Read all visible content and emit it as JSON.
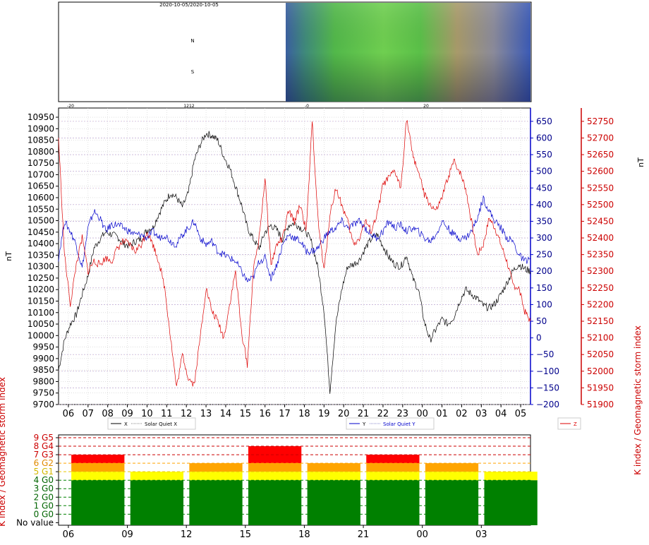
{
  "header": {
    "keogram_title": "2020-10-05/2020-10-05",
    "left_labels": [
      "-20",
      "1212",
      "N",
      "S"
    ],
    "right_labels": [
      "-0",
      "20"
    ]
  },
  "colors": {
    "x": "#000000",
    "y": "#0000cc",
    "z": "#dd0000",
    "g_green": "#008000",
    "g_yellow": "#ffff00",
    "g_orange": "#ffa500",
    "g_red": "#ff0000",
    "left_axis_text": "#000000",
    "mid_axis_text": "#00008b",
    "right_axis_text": "#cc0000"
  },
  "chart_data": [
    {
      "type": "line",
      "ylabel_left": "nT",
      "ylabel_right": "nT",
      "left_axis": {
        "ticks": [
          9700,
          9750,
          9800,
          9850,
          9900,
          9950,
          10000,
          10050,
          10100,
          10150,
          10200,
          10250,
          10300,
          10350,
          10400,
          10450,
          10500,
          10550,
          10600,
          10650,
          10700,
          10750,
          10800,
          10850,
          10900,
          10950
        ],
        "ylim": [
          9700,
          10990
        ]
      },
      "mid_axis": {
        "ticks": [
          -200,
          -150,
          -100,
          -50,
          0,
          50,
          100,
          150,
          200,
          250,
          300,
          350,
          400,
          450,
          500,
          550,
          600,
          650
        ],
        "ylim": [
          -200,
          690
        ]
      },
      "right_axis": {
        "ticks": [
          51900,
          51950,
          52000,
          52050,
          52100,
          52150,
          52200,
          52250,
          52300,
          52350,
          52400,
          52450,
          52500,
          52550,
          52600,
          52650,
          52700,
          52750
        ],
        "ylim": [
          51900,
          52790
        ]
      },
      "x_ticks": [
        "06",
        "07",
        "08",
        "09",
        "10",
        "11",
        "12",
        "13",
        "14",
        "15",
        "16",
        "17",
        "18",
        "19",
        "20",
        "21",
        "22",
        "23",
        "00",
        "01",
        "02",
        "03",
        "04",
        "05"
      ],
      "legends": [
        {
          "label": "X",
          "label2": "Solar Quiet X"
        },
        {
          "label": "Y",
          "label2": "Solar Quiet Y"
        },
        {
          "label": "Z"
        }
      ],
      "series": [
        {
          "name": "X",
          "axis": "left",
          "x": [
            0,
            0.3,
            0.6,
            0.9,
            1.2,
            1.5,
            1.8,
            2.1,
            2.4,
            2.7,
            3.0,
            3.3,
            3.6,
            3.9,
            4.2,
            4.5,
            4.8,
            5.1,
            5.4,
            5.7,
            6.0,
            6.3,
            6.6,
            6.9,
            7.2,
            7.5,
            7.8,
            8.1,
            8.4,
            8.7,
            9.0,
            9.3,
            9.6,
            9.9,
            10.2,
            10.5,
            10.8,
            11.1,
            11.4,
            11.7,
            12.0,
            12.3,
            12.6,
            12.9,
            13.2,
            13.5,
            13.8,
            14.1,
            14.4,
            14.7,
            15.0,
            15.3,
            15.6,
            15.9,
            16.2,
            16.5,
            16.8,
            17.1,
            17.4,
            17.7,
            18.0,
            18.3,
            18.6,
            18.9,
            19.2,
            19.5,
            19.8,
            20.1,
            20.4,
            20.7,
            21.0,
            21.3,
            21.6,
            21.9,
            22.2,
            22.5,
            22.8,
            23.1,
            23.4,
            23.7,
            24.0
          ],
          "values": [
            9850,
            9980,
            10050,
            10090,
            10180,
            10260,
            10380,
            10420,
            10450,
            10440,
            10430,
            10400,
            10390,
            10410,
            10420,
            10460,
            10470,
            10530,
            10580,
            10620,
            10600,
            10560,
            10620,
            10760,
            10830,
            10880,
            10870,
            10850,
            10780,
            10730,
            10650,
            10570,
            10470,
            10420,
            10380,
            10450,
            10480,
            10460,
            10420,
            10480,
            10490,
            10470,
            10450,
            10400,
            10290,
            10110,
            9760,
            10050,
            10200,
            10300,
            10310,
            10330,
            10380,
            10420,
            10440,
            10390,
            10340,
            10310,
            10300,
            10350,
            10250,
            10200,
            10060,
            9980,
            10030,
            10070,
            10050,
            10080,
            10150,
            10200,
            10180,
            10160,
            10130,
            10120,
            10140,
            10180,
            10230,
            10280,
            10310,
            10290,
            10280
          ]
        },
        {
          "name": "Y",
          "axis": "mid",
          "x": [
            0,
            0.3,
            0.6,
            0.9,
            1.2,
            1.5,
            1.8,
            2.1,
            2.4,
            2.7,
            3.0,
            3.3,
            3.6,
            3.9,
            4.2,
            4.5,
            4.8,
            5.1,
            5.4,
            5.7,
            6.0,
            6.3,
            6.6,
            6.9,
            7.2,
            7.5,
            7.8,
            8.1,
            8.4,
            8.7,
            9.0,
            9.3,
            9.6,
            9.9,
            10.2,
            10.5,
            10.8,
            11.1,
            11.4,
            11.7,
            12.0,
            12.3,
            12.6,
            12.9,
            13.2,
            13.5,
            13.8,
            14.1,
            14.4,
            14.7,
            15.0,
            15.3,
            15.6,
            15.9,
            16.2,
            16.5,
            16.8,
            17.1,
            17.4,
            17.7,
            18.0,
            18.3,
            18.6,
            18.9,
            19.2,
            19.5,
            19.8,
            20.1,
            20.4,
            20.7,
            21.0,
            21.3,
            21.6,
            21.9,
            22.2,
            22.5,
            22.8,
            23.1,
            23.4,
            23.7,
            24.0
          ],
          "values": [
            240,
            350,
            320,
            280,
            210,
            330,
            380,
            360,
            320,
            340,
            340,
            330,
            320,
            310,
            310,
            300,
            320,
            300,
            310,
            290,
            280,
            310,
            330,
            350,
            300,
            280,
            290,
            260,
            250,
            240,
            230,
            200,
            170,
            180,
            230,
            240,
            180,
            220,
            280,
            310,
            300,
            290,
            260,
            260,
            270,
            300,
            320,
            330,
            350,
            330,
            340,
            350,
            330,
            310,
            300,
            320,
            350,
            330,
            340,
            320,
            330,
            320,
            300,
            290,
            310,
            350,
            330,
            310,
            300,
            300,
            320,
            360,
            420,
            380,
            350,
            330,
            300,
            290,
            250,
            230,
            240
          ]
        },
        {
          "name": "Z",
          "axis": "right",
          "x": [
            0,
            0.3,
            0.6,
            0.9,
            1.2,
            1.5,
            1.8,
            2.1,
            2.4,
            2.7,
            3.0,
            3.3,
            3.6,
            3.9,
            4.2,
            4.5,
            4.8,
            5.1,
            5.4,
            5.7,
            6.0,
            6.3,
            6.6,
            6.9,
            7.2,
            7.5,
            7.8,
            8.1,
            8.4,
            8.7,
            9.0,
            9.3,
            9.6,
            9.9,
            10.2,
            10.5,
            10.8,
            11.1,
            11.4,
            11.7,
            12.0,
            12.3,
            12.6,
            12.9,
            13.2,
            13.5,
            13.8,
            14.1,
            14.4,
            14.7,
            15.0,
            15.3,
            15.6,
            15.9,
            16.2,
            16.5,
            16.8,
            17.1,
            17.4,
            17.7,
            18.0,
            18.3,
            18.6,
            18.9,
            19.2,
            19.5,
            19.8,
            20.1,
            20.4,
            20.7,
            21.0,
            21.3,
            21.6,
            21.9,
            22.2,
            22.5,
            22.8,
            23.1,
            23.4,
            23.7,
            24.0
          ],
          "values": [
            52700,
            52350,
            52200,
            52320,
            52400,
            52300,
            52330,
            52320,
            52340,
            52330,
            52370,
            52390,
            52380,
            52360,
            52380,
            52420,
            52380,
            52330,
            52250,
            52100,
            51950,
            52050,
            51980,
            51960,
            52100,
            52250,
            52180,
            52150,
            52100,
            52200,
            52300,
            52120,
            52020,
            52300,
            52400,
            52580,
            52320,
            52380,
            52400,
            52480,
            52450,
            52500,
            52420,
            52750,
            52450,
            52300,
            52470,
            52550,
            52500,
            52450,
            52380,
            52400,
            52450,
            52420,
            52470,
            52560,
            52580,
            52600,
            52550,
            52760,
            52650,
            52600,
            52530,
            52500,
            52480,
            52520,
            52580,
            52630,
            52600,
            52550,
            52450,
            52350,
            52380,
            52460,
            52430,
            52380,
            52330,
            52260,
            52250,
            52180,
            52150
          ]
        }
      ]
    },
    {
      "type": "bar",
      "ylabel": "K index / Geomagnetic storm index",
      "y_ticks": [
        "No value",
        "0 G0",
        "1 G0",
        "2 G0",
        "3 G0",
        "4 G0",
        "5 G1",
        "6 G2",
        "7 G3",
        "8 G4",
        "9 G5"
      ],
      "x_ticks": [
        "06",
        "09",
        "12",
        "15",
        "18",
        "21",
        "00",
        "03"
      ],
      "bar_values": [
        7,
        5,
        6,
        8,
        6,
        7,
        6,
        5
      ]
    }
  ]
}
